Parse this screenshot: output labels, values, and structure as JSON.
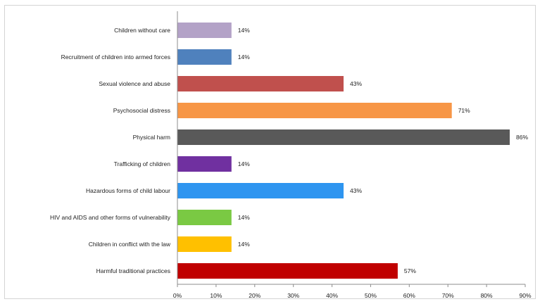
{
  "chart_data": {
    "type": "bar",
    "orientation": "horizontal",
    "categories": [
      "Children without care",
      "Recruitment of children into armed forces",
      "Sexual violence and abuse",
      "Psychosocial distress",
      "Physical harm",
      "Trafficking of children",
      "Hazardous forms of child labour",
      "HIV and AIDS and other forms of vulnerability",
      "Children in conflict with the law",
      "Harmful traditional practices"
    ],
    "values": [
      14,
      14,
      43,
      71,
      86,
      14,
      43,
      14,
      14,
      57
    ],
    "value_labels": [
      "14%",
      "14%",
      "43%",
      "71%",
      "86%",
      "14%",
      "43%",
      "14%",
      "14%",
      "57%"
    ],
    "colors": [
      "#b3a2c7",
      "#4f81bd",
      "#c0504d",
      "#f79646",
      "#595959",
      "#7030a0",
      "#2e95f0",
      "#7ac943",
      "#ffc000",
      "#c00000"
    ],
    "xlim": [
      0,
      90
    ],
    "x_ticks": [
      "0%",
      "10%",
      "20%",
      "30%",
      "40%",
      "50%",
      "60%",
      "70%",
      "80%",
      "90%"
    ],
    "title": "",
    "xlabel": "",
    "ylabel": "",
    "grid": false,
    "legend": "none"
  }
}
